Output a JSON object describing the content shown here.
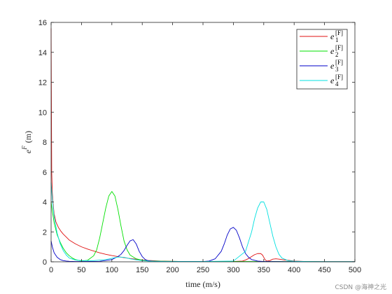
{
  "chart_data": {
    "type": "line",
    "title": "",
    "xlabel": "time (m/s)",
    "ylabel_base": "e",
    "ylabel_sup": "F",
    "ylabel_unit": "(m)",
    "xlim": [
      0,
      500
    ],
    "ylim": [
      0,
      16
    ],
    "x_ticks": [
      0,
      50,
      100,
      150,
      200,
      250,
      300,
      350,
      400,
      450,
      500
    ],
    "y_ticks": [
      0,
      2,
      4,
      6,
      8,
      10,
      12,
      14,
      16
    ],
    "grid": false,
    "legend_position": "top-right",
    "series": [
      {
        "name": "e_1^[F]",
        "legend_base": "e",
        "legend_sub": "1",
        "legend_sup": "[F]",
        "color": "#e01010",
        "x": [
          0,
          1,
          2,
          3,
          5,
          8,
          12,
          16,
          20,
          25,
          30,
          40,
          50,
          60,
          70,
          80,
          90,
          100,
          110,
          120,
          130,
          140,
          150,
          160,
          170,
          180,
          200,
          220,
          250,
          280,
          300,
          315,
          320,
          325,
          330,
          335,
          340,
          345,
          348,
          350,
          352,
          355,
          360,
          365,
          370,
          375,
          380,
          385,
          390,
          400,
          420,
          450,
          500
        ],
        "y": [
          15.6,
          6.0,
          4.6,
          4.0,
          3.2,
          2.65,
          2.3,
          2.05,
          1.85,
          1.65,
          1.45,
          1.2,
          1.0,
          0.85,
          0.72,
          0.6,
          0.5,
          0.42,
          0.35,
          0.28,
          0.22,
          0.17,
          0.12,
          0.09,
          0.07,
          0.05,
          0.03,
          0.02,
          0.02,
          0.02,
          0.02,
          0.05,
          0.12,
          0.22,
          0.35,
          0.48,
          0.55,
          0.55,
          0.45,
          0.3,
          0.15,
          0.05,
          0.08,
          0.18,
          0.2,
          0.18,
          0.15,
          0.12,
          0.1,
          0.05,
          0.02,
          0.01,
          0.01
        ]
      },
      {
        "name": "e_2^[F]",
        "legend_base": "e",
        "legend_sub": "2",
        "legend_sup": "[F]",
        "color": "#00e000",
        "x": [
          0,
          2,
          5,
          10,
          15,
          20,
          25,
          30,
          35,
          40,
          50,
          60,
          70,
          75,
          80,
          85,
          90,
          95,
          100,
          105,
          110,
          115,
          120,
          125,
          130,
          140,
          150,
          160,
          170,
          180,
          200,
          250,
          300,
          350,
          400,
          450,
          500
        ],
        "y": [
          4.0,
          3.4,
          2.6,
          1.8,
          1.3,
          0.9,
          0.6,
          0.4,
          0.25,
          0.15,
          0.05,
          0.1,
          0.4,
          0.8,
          1.6,
          2.6,
          3.6,
          4.4,
          4.7,
          4.4,
          3.5,
          2.4,
          1.4,
          0.8,
          0.45,
          0.2,
          0.1,
          0.06,
          0.05,
          0.04,
          0.03,
          0.02,
          0.02,
          0.02,
          0.02,
          0.01,
          0.01
        ]
      },
      {
        "name": "e_3^[F]",
        "legend_base": "e",
        "legend_sub": "3",
        "legend_sup": "[F]",
        "color": "#0000c8",
        "x": [
          0,
          2,
          5,
          10,
          15,
          20,
          25,
          30,
          40,
          50,
          80,
          100,
          110,
          115,
          120,
          125,
          130,
          135,
          140,
          145,
          150,
          155,
          160,
          170,
          180,
          200,
          250,
          260,
          270,
          280,
          285,
          290,
          295,
          300,
          305,
          310,
          315,
          320,
          325,
          330,
          340,
          350,
          400,
          450,
          500
        ],
        "y": [
          1.4,
          1.0,
          0.6,
          0.3,
          0.15,
          0.08,
          0.05,
          0.03,
          0.02,
          0.02,
          0.03,
          0.15,
          0.35,
          0.5,
          0.75,
          1.1,
          1.4,
          1.48,
          1.2,
          0.7,
          0.35,
          0.15,
          0.07,
          0.03,
          0.02,
          0.02,
          0.02,
          0.05,
          0.2,
          0.7,
          1.2,
          1.8,
          2.2,
          2.3,
          2.1,
          1.6,
          1.0,
          0.55,
          0.3,
          0.15,
          0.05,
          0.02,
          0.01,
          0.01,
          0.01
        ]
      },
      {
        "name": "e_4^[F]",
        "legend_base": "e",
        "legend_sub": "4",
        "legend_sup": "[F]",
        "color": "#00e0e0",
        "x": [
          0,
          2,
          5,
          10,
          15,
          20,
          25,
          30,
          40,
          50,
          70,
          90,
          110,
          120,
          130,
          140,
          150,
          160,
          180,
          200,
          250,
          300,
          320,
          330,
          335,
          340,
          345,
          350,
          355,
          360,
          365,
          370,
          375,
          380,
          390,
          400,
          420,
          450,
          500
        ],
        "y": [
          5.3,
          4.2,
          3.0,
          1.9,
          1.2,
          0.75,
          0.45,
          0.25,
          0.12,
          0.08,
          0.08,
          0.15,
          0.32,
          0.3,
          0.2,
          0.13,
          0.08,
          0.05,
          0.03,
          0.02,
          0.02,
          0.05,
          0.7,
          2.0,
          2.9,
          3.6,
          4.0,
          4.0,
          3.5,
          2.6,
          1.7,
          1.0,
          0.5,
          0.25,
          0.08,
          0.04,
          0.02,
          0.01,
          0.01
        ]
      }
    ]
  },
  "watermark": "CSDN @海神之光"
}
